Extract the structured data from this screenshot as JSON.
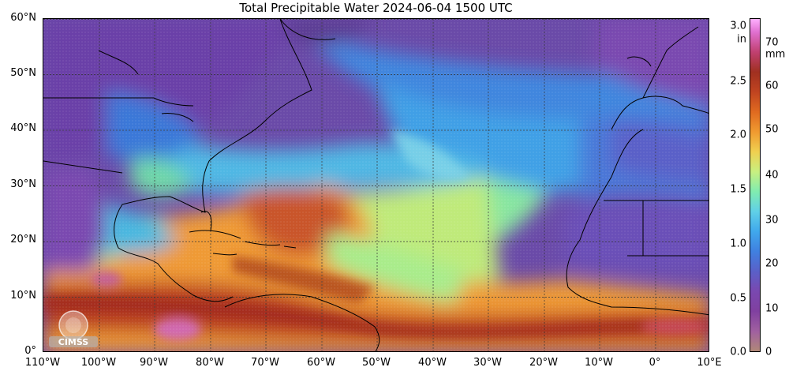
{
  "title": "Total Precipitable Water  2024-06-04 1500 UTC",
  "lat_labels": [
    "60°N",
    "50°N",
    "40°N",
    "30°N",
    "20°N",
    "10°N",
    "0°"
  ],
  "lon_labels": [
    "110°W",
    "100°W",
    "90°W",
    "80°W",
    "70°W",
    "60°W",
    "50°W",
    "40°W",
    "30°W",
    "20°W",
    "10°W",
    "0°",
    "10°E"
  ],
  "colorbar": {
    "in_unit": "in",
    "mm_unit": "mm",
    "in_ticks": [
      "3.0",
      "2.5",
      "2.0",
      "1.5",
      "1.0",
      "0.5",
      "0.0"
    ],
    "mm_ticks": [
      "70",
      "60",
      "50",
      "40",
      "30",
      "20",
      "10",
      "0"
    ]
  },
  "logo_text": "CIMSS",
  "colors": {
    "moist_high": "#a03020",
    "moist_mid": "#f09a30",
    "mid": "#80ecb0",
    "dry_mid": "#40a8ec",
    "dry": "#7a48b0"
  }
}
